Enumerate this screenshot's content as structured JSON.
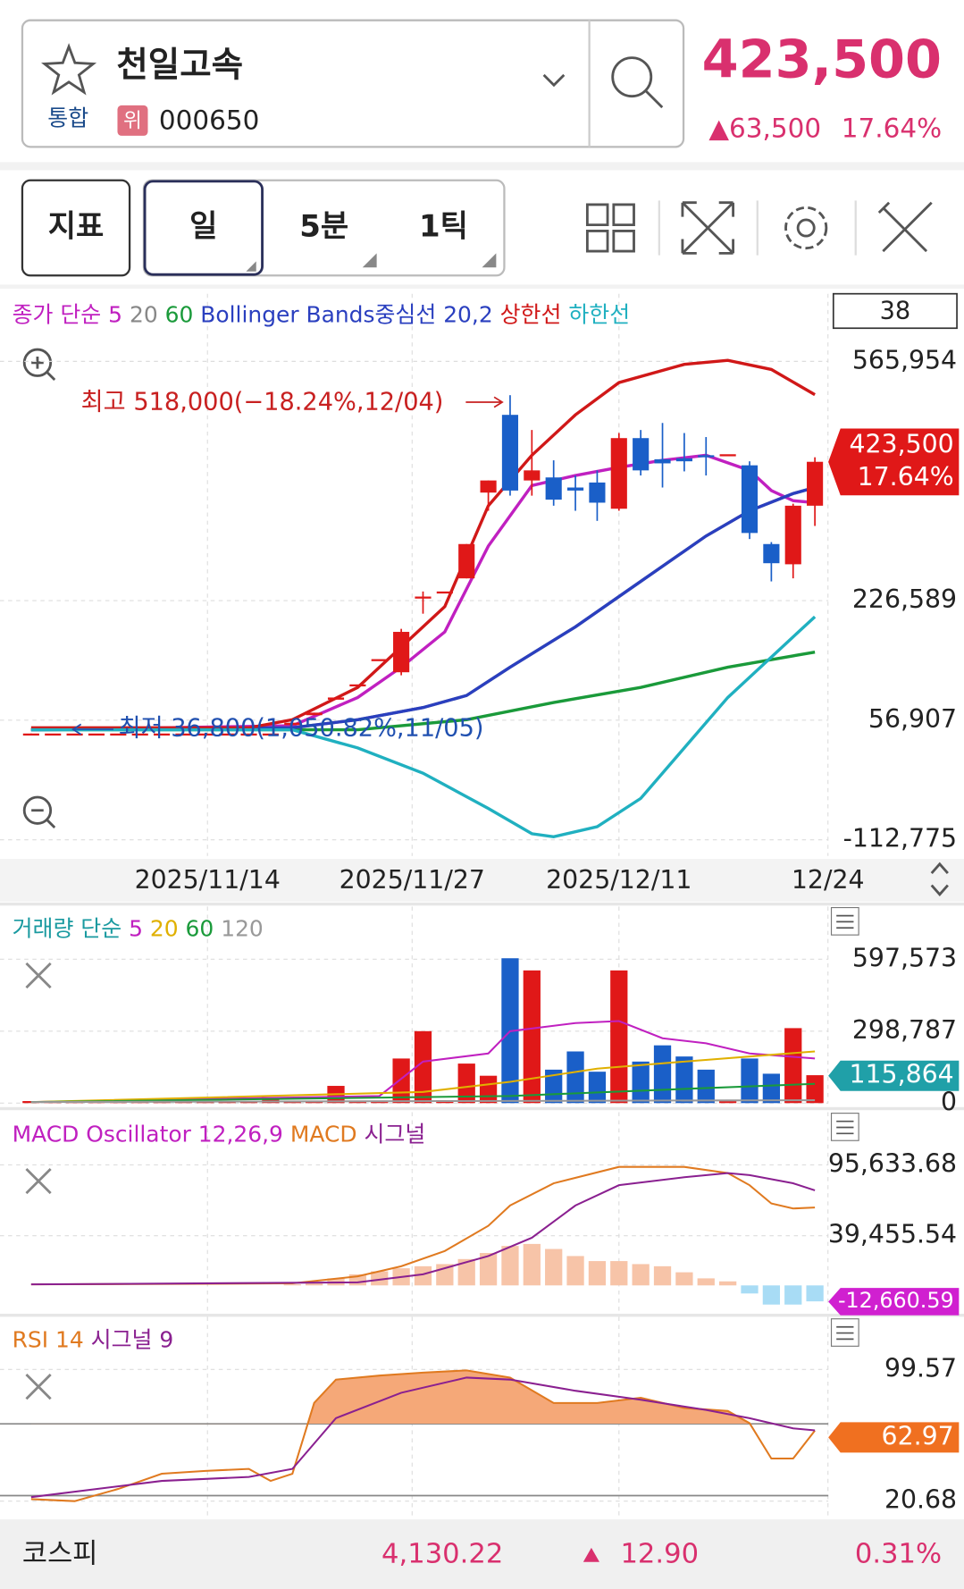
{
  "header": {
    "name": "천일고속",
    "market": "통합",
    "badge": "위",
    "code": "000650",
    "price": "423,500",
    "change": "▲63,500",
    "change_rate": "17.64%"
  },
  "toolbar": {
    "indicator": "지표",
    "periods": [
      "일",
      "5분",
      "1틱"
    ]
  },
  "count_box": "38",
  "chart_data": [
    {
      "type": "candlestick",
      "legend_prefix": "종가 단순",
      "up_color": "#e01818",
      "down_color": "#1a5fc8",
      "ylim": [
        -135700,
        661900
      ],
      "yticks": [
        {
          "value": 565954,
          "label": "565,954"
        },
        {
          "value": 226589,
          "label": "226,589"
        },
        {
          "value": 56907,
          "label": "56,907"
        },
        {
          "value": -112775,
          "label": "-112,775"
        }
      ],
      "xticks": [
        {
          "value": 8.1,
          "label": "2025/11/14"
        },
        {
          "value": 17.5,
          "label": "2025/11/27"
        },
        {
          "value": 27,
          "label": "2025/12/11"
        },
        {
          "value": 36.6,
          "label": "12/24"
        }
      ],
      "ohlc": [
        [
          38000,
          38000,
          36800,
          38000
        ],
        [
          38000,
          38000,
          38000,
          38000
        ],
        [
          38000,
          38000,
          38000,
          38000
        ],
        [
          38000,
          38000,
          38000,
          38000
        ],
        [
          38000,
          38000,
          38000,
          38000
        ],
        [
          38000,
          38000,
          38000,
          38000
        ],
        [
          38000,
          38000,
          38000,
          38000
        ],
        [
          38000,
          38000,
          38000,
          38000
        ],
        [
          38000,
          38000,
          38000,
          38000
        ],
        [
          38000,
          38000,
          38000,
          38000
        ],
        [
          38000,
          38000,
          38000,
          38000
        ],
        [
          38000,
          38000,
          38000,
          38000
        ],
        [
          50000,
          53300,
          50000,
          53300
        ],
        [
          64000,
          67600,
          64000,
          67600
        ],
        [
          86000,
          89100,
          86000,
          89100
        ],
        [
          107700,
          107700,
          107700,
          107700
        ],
        [
          143500,
          143500,
          143500,
          143500
        ],
        [
          124900,
          186500,
          120600,
          182200
        ],
        [
          232300,
          239500,
          208000,
          232300
        ],
        [
          239500,
          239500,
          239500,
          239500
        ],
        [
          258100,
          306800,
          258100,
          306800
        ],
        [
          379800,
          397000,
          354000,
          397000
        ],
        [
          490100,
          518000,
          375500,
          382700
        ],
        [
          397000,
          468600,
          375500,
          411300
        ],
        [
          401300,
          425600,
          361200,
          369800
        ],
        [
          387000,
          404100,
          354000,
          382700
        ],
        [
          394100,
          411300,
          339700,
          365500
        ],
        [
          356900,
          464300,
          354000,
          457100
        ],
        [
          457100,
          468600,
          404100,
          411300
        ],
        [
          427100,
          478600,
          387000,
          421300
        ],
        [
          428500,
          464300,
          409900,
          424200
        ],
        [
          432800,
          458600,
          404100,
          429900
        ],
        [
          434200,
          434200,
          434200,
          434200
        ],
        [
          418500,
          424200,
          313900,
          322500
        ],
        [
          306800,
          309600,
          253800,
          279600
        ],
        [
          278100,
          364000,
          258100,
          361200
        ],
        [
          361200,
          429900,
          332500,
          423500
        ]
      ],
      "series": [
        {
          "name": "5",
          "color": "#c020c0",
          "x": [
            0,
            12,
            15,
            17,
            19,
            21,
            22,
            23,
            25,
            27,
            29,
            31,
            33,
            34,
            35,
            36
          ],
          "values": [
            43300,
            49000,
            89100,
            132100,
            182200,
            303900,
            346900,
            389800,
            404100,
            415600,
            425600,
            432800,
            411300,
            382700,
            368300,
            365500
          ]
        },
        {
          "name": "20",
          "color": "#888888",
          "x": [
            0,
            12,
            15,
            18,
            20,
            22,
            25,
            28,
            31,
            33,
            35,
            36
          ],
          "values": [
            43300,
            46100,
            57600,
            74800,
            91900,
            132100,
            189300,
            253800,
            318200,
            354000,
            378400,
            387000
          ]
        },
        {
          "name": "60",
          "color": "#1a9a3a",
          "x": [
            0,
            15,
            20,
            24,
            28,
            32,
            36
          ],
          "values": [
            43300,
            43300,
            57600,
            82000,
            103400,
            132100,
            153500
          ]
        },
        {
          "name": "Bollinger Bands중심선 20,2",
          "color": "#2a3fbf",
          "x": [
            0,
            12,
            15,
            18,
            20,
            22,
            25,
            28,
            31,
            33,
            35,
            36
          ],
          "values": [
            43300,
            46100,
            57600,
            74800,
            91900,
            132100,
            189300,
            253800,
            318200,
            354000,
            378400,
            387000
          ]
        },
        {
          "name": "상한선",
          "color": "#d01818",
          "x": [
            0,
            10,
            12,
            15,
            17,
            19,
            21,
            23,
            25,
            27,
            30,
            32,
            34,
            36
          ],
          "values": [
            46100,
            46100,
            57600,
            103400,
            160700,
            218000,
            361200,
            432800,
            490100,
            535900,
            561700,
            567400,
            554500,
            518700
          ]
        },
        {
          "name": "하한선",
          "color": "#20b0c0",
          "x": [
            0,
            12,
            15,
            18,
            21,
            23,
            24,
            26,
            28,
            30,
            32,
            34,
            36
          ],
          "values": [
            43300,
            43300,
            17500,
            -18300,
            -68400,
            -104200,
            -108500,
            -94200,
            -54100,
            17500,
            89100,
            146400,
            203700
          ]
        }
      ],
      "annotations": [
        "최고 518,000(−18.24%,12/04)",
        "최저 36,800(1,050.82%,11/05)"
      ],
      "tag": [
        "423,500",
        "17.64%"
      ]
    },
    {
      "type": "bar",
      "legend_prefix": "거래량 단순",
      "ylim": [
        0,
        816400
      ],
      "yticks": [
        {
          "value": 597573,
          "label": "597,573"
        },
        {
          "value": 298787,
          "label": "298,787"
        },
        0
      ],
      "values": [
        8400,
        8400,
        8400,
        8400,
        8400,
        8400,
        8400,
        8400,
        8400,
        8400,
        8400,
        25200,
        8400,
        8400,
        71500,
        10000,
        10000,
        185200,
        298800,
        12000,
        164100,
        113600,
        601700,
        551200,
        138900,
        214600,
        130400,
        551200,
        172500,
        239900,
        193600,
        138900,
        8000,
        185200,
        122000,
        311400,
        115864
      ],
      "series": [
        {
          "name": "5",
          "color": "#c020c0",
          "x": [
            0,
            16,
            18,
            21,
            22,
            25,
            27,
            29,
            31,
            33,
            36
          ],
          "values": [
            4200,
            29500,
            172500,
            206200,
            298800,
            332400,
            340800,
            269300,
            248300,
            206200,
            185200
          ]
        },
        {
          "name": "20",
          "color": "#e0b000",
          "x": [
            0,
            18,
            22,
            26,
            30,
            36
          ],
          "values": [
            4200,
            46300,
            88400,
            143100,
            172500,
            214600
          ]
        },
        {
          "name": "60",
          "color": "#1a9a3a",
          "x": [
            0,
            22,
            30,
            36
          ],
          "values": [
            4200,
            29500,
            58900,
            80000
          ]
        },
        {
          "name": "120",
          "color": "#999999",
          "x": [
            0,
            36
          ],
          "values": [
            4200,
            12000
          ]
        }
      ],
      "tag": "115,864"
    },
    {
      "type": "bar",
      "name": "MACD Oscillator 12,26,9",
      "pos_color": "#f7c4a8",
      "neg_color": "#a8dcf5",
      "ylim": [
        -20900,
        137400
      ],
      "yticks": [
        {
          "value": 95633.68,
          "label": "95,633.68"
        },
        {
          "value": 39455.54,
          "label": "39,455.54"
        }
      ],
      "values": [
        0,
        0,
        0,
        0,
        0,
        0,
        0,
        0,
        0,
        0,
        0,
        0,
        800,
        2400,
        5600,
        8800,
        11200,
        13600,
        15200,
        16900,
        20900,
        25700,
        31300,
        32900,
        28900,
        23300,
        19300,
        19300,
        16900,
        15200,
        10400,
        5600,
        3200,
        -6400,
        -15200,
        -15200,
        -12660.59
      ],
      "series": [
        {
          "name": "MACD",
          "color": "#e07a20",
          "x": [
            0,
            12,
            15,
            17,
            19,
            21,
            22,
            24,
            27,
            30,
            32,
            33,
            34,
            35,
            36
          ],
          "values": [
            800,
            1600,
            7200,
            15200,
            27300,
            47300,
            63400,
            81000,
            94000,
            94000,
            89100,
            79500,
            65000,
            61000,
            61800
          ]
        },
        {
          "name": "시그널",
          "color": "#8a2090",
          "x": [
            0,
            15,
            18,
            21,
            23,
            25,
            27,
            30,
            32,
            33,
            35,
            36
          ],
          "values": [
            800,
            2400,
            8800,
            23300,
            37800,
            63400,
            79500,
            85800,
            89100,
            87500,
            81000,
            75400
          ]
        }
      ],
      "tag": "-12,660.59"
    },
    {
      "type": "line",
      "ylim": [
        10.97,
        131.1
      ],
      "levels": [
        67,
        24
      ],
      "fill_color": "#f5a878",
      "yticks": [
        99.57,
        20.68
      ],
      "series": [
        {
          "name": "RSI 14",
          "color": "#e07a20",
          "x": [
            0,
            2,
            4,
            6,
            8,
            10,
            11,
            12,
            13,
            14,
            16,
            18,
            20,
            22,
            24,
            26,
            28,
            30,
            32,
            33,
            34,
            35,
            36
          ],
          "values": [
            21.9,
            20.7,
            28,
            37.1,
            38.8,
            40,
            32.8,
            37.1,
            79.5,
            93.5,
            95.9,
            97.7,
            99,
            94.7,
            79.5,
            79.5,
            82.6,
            76.5,
            74.7,
            67.4,
            46.2,
            46.2,
            62.97
          ]
        },
        {
          "name": "시그널 9",
          "color": "#8a2090",
          "x": [
            0,
            6,
            10,
            12,
            14,
            17,
            20,
            22,
            25,
            28,
            31,
            33,
            35,
            36
          ],
          "values": [
            23.1,
            32.8,
            35.2,
            40,
            70.4,
            85.6,
            94.7,
            93.5,
            86.8,
            81.4,
            75.3,
            70.4,
            64.3,
            63.1
          ]
        }
      ],
      "tag": "62.97"
    }
  ],
  "footer": {
    "index": "코스피",
    "value": "4,130.22",
    "change": "12.90",
    "rate": "0.31%"
  }
}
